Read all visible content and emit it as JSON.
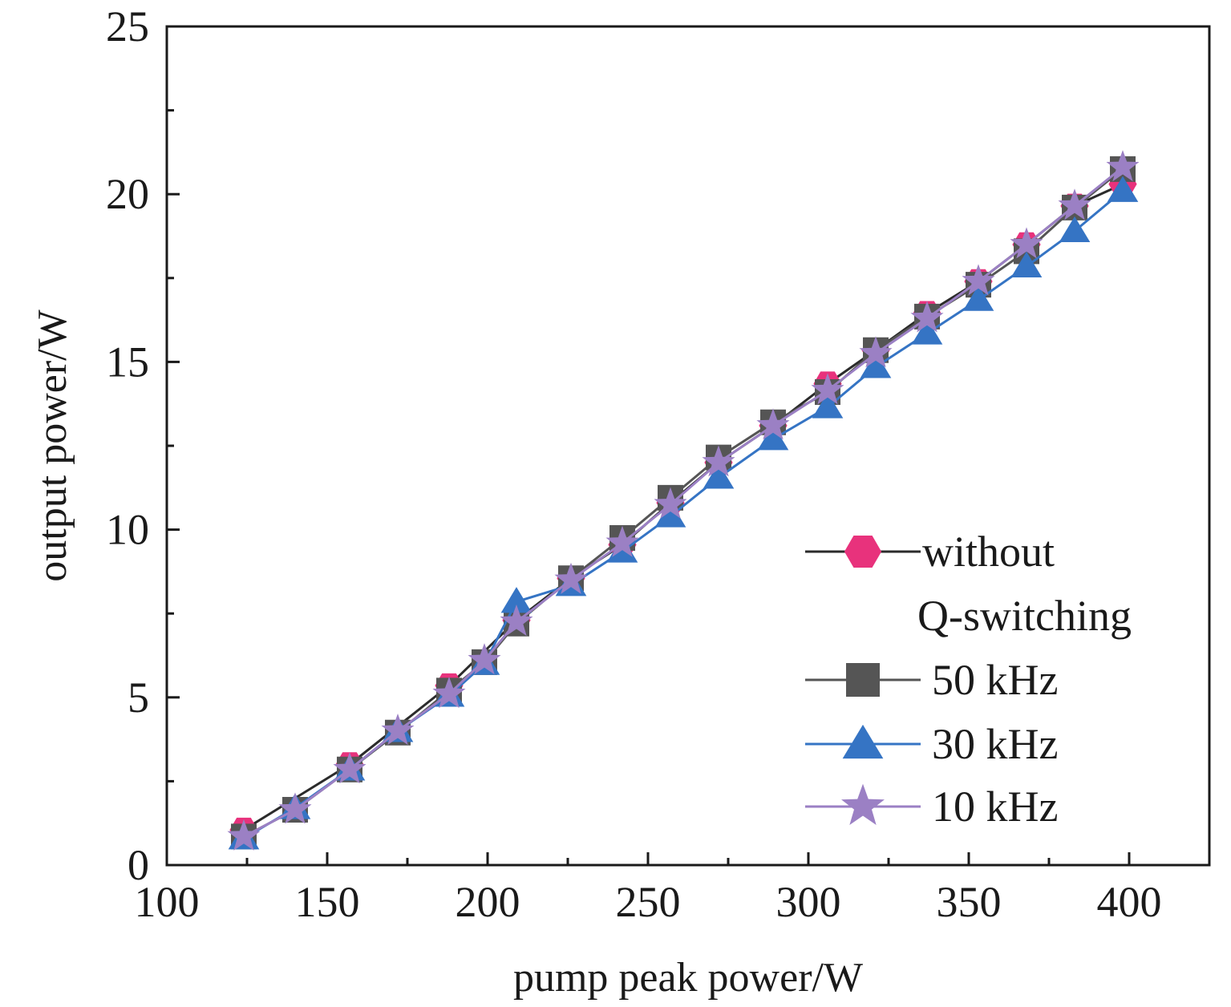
{
  "chart_data": {
    "type": "line",
    "xlabel": "pump peak power/W",
    "ylabel": "output power/W",
    "xlim": [
      100,
      425
    ],
    "ylim": [
      0,
      25
    ],
    "xticks": [
      100,
      150,
      200,
      250,
      300,
      350,
      400
    ],
    "yticks": [
      0,
      5,
      10,
      15,
      20,
      25
    ],
    "x_minor_step": 25,
    "y_minor_step": 2.5,
    "grid": false,
    "legend_position": "bottom-right",
    "series": [
      {
        "name": "without Q-switching",
        "legend_lines": [
          "without",
          "Q-switching"
        ],
        "marker": "hexagon",
        "color": "#e8327c",
        "line_color": "#2b2b2b",
        "x": [
          124,
          157,
          188,
          209,
          226,
          242,
          257,
          272,
          289,
          306,
          321,
          337,
          353,
          368,
          383,
          398
        ],
        "y": [
          1.05,
          3.0,
          5.35,
          7.3,
          8.55,
          9.55,
          10.8,
          12.0,
          13.1,
          14.35,
          15.35,
          16.45,
          17.4,
          18.5,
          19.65,
          20.3
        ]
      },
      {
        "name": "50 kHz",
        "marker": "square",
        "color": "#555555",
        "line_color": "#555555",
        "x": [
          124,
          140,
          157,
          172,
          188,
          199,
          209,
          226,
          242,
          257,
          272,
          289,
          306,
          321,
          337,
          353,
          368,
          383,
          398
        ],
        "y": [
          0.85,
          1.65,
          2.85,
          3.95,
          5.2,
          6.05,
          7.2,
          8.55,
          9.75,
          10.95,
          12.15,
          13.2,
          14.1,
          15.35,
          16.35,
          17.3,
          18.3,
          19.6,
          20.75
        ]
      },
      {
        "name": "30 kHz",
        "marker": "triangle",
        "color": "#3574c4",
        "line_color": "#3574c4",
        "x": [
          124,
          140,
          157,
          172,
          188,
          199,
          209,
          226,
          242,
          257,
          272,
          289,
          306,
          321,
          337,
          353,
          368,
          383,
          398
        ],
        "y": [
          0.8,
          1.7,
          2.85,
          4.0,
          5.05,
          6.0,
          7.85,
          8.35,
          9.35,
          10.4,
          11.55,
          12.7,
          13.65,
          14.85,
          15.85,
          16.85,
          17.85,
          18.9,
          20.1
        ]
      },
      {
        "name": "10 kHz",
        "marker": "star",
        "color": "#9b80c4",
        "line_color": "#9b80c4",
        "x": [
          124,
          140,
          157,
          172,
          188,
          199,
          209,
          226,
          242,
          257,
          272,
          289,
          306,
          321,
          337,
          353,
          368,
          383,
          398
        ],
        "y": [
          0.85,
          1.65,
          2.85,
          4.0,
          5.1,
          6.1,
          7.25,
          8.5,
          9.6,
          10.75,
          12.0,
          13.1,
          14.15,
          15.25,
          16.3,
          17.4,
          18.5,
          19.65,
          20.8
        ]
      }
    ]
  }
}
